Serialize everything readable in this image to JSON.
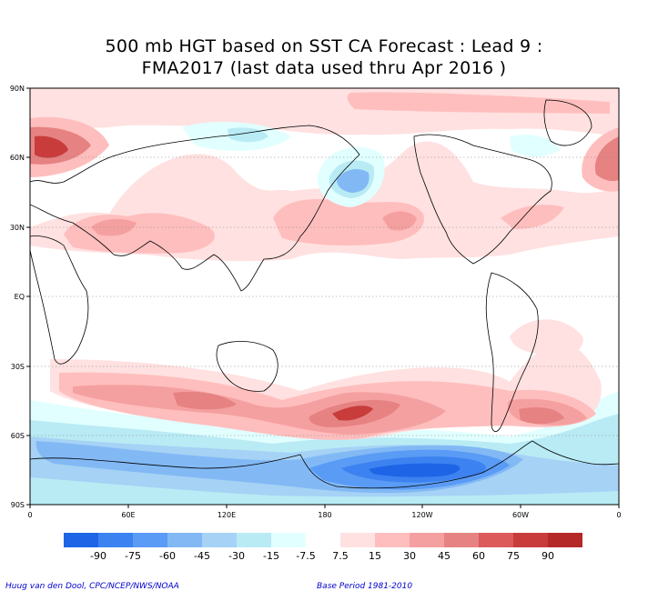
{
  "title": {
    "line1": "500 mb HGT based on SST CA Forecast : Lead 9 :",
    "line2": "FMA2017 (last data used thru Apr 2016 )"
  },
  "axes": {
    "lat_labels": [
      "90N",
      "60N",
      "30N",
      "EQ",
      "30S",
      "60S",
      "90S"
    ],
    "lon_labels": [
      "0",
      "60E",
      "120E",
      "180",
      "120W",
      "60W",
      "0"
    ]
  },
  "colorbar": {
    "labels": [
      "-90",
      "-75",
      "-60",
      "-45",
      "-30",
      "-15",
      "-7.5",
      "7.5",
      "15",
      "30",
      "45",
      "60",
      "75",
      "90"
    ],
    "colors": [
      "#1e64e6",
      "#3c82f0",
      "#5a9bf5",
      "#82b9f5",
      "#a5d2f5",
      "#b9ebf5",
      "#e1ffff",
      "#ffffff",
      "#ffe1e1",
      "#ffbebe",
      "#f5a0a0",
      "#e68282",
      "#dc5a5a",
      "#c83c3c",
      "#b42828"
    ]
  },
  "credits": {
    "left": "Huug van den Dool, CPC/NCEP/NWS/NOAA",
    "right": "Base Period 1981-2010"
  }
}
